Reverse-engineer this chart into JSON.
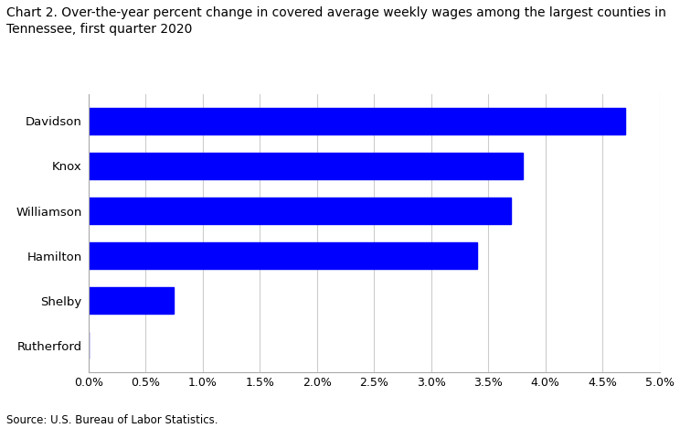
{
  "title_line1": "Chart 2. Over-the-year percent change in covered average weekly wages among the largest counties in",
  "title_line2": "Tennessee, first quarter 2020",
  "categories": [
    "Davidson",
    "Knox",
    "Williamson",
    "Hamilton",
    "Shelby",
    "Rutherford"
  ],
  "values": [
    0.047,
    0.038,
    0.037,
    0.034,
    0.0075,
    0.0
  ],
  "bar_color": "#0000FF",
  "xlim": [
    0,
    0.05
  ],
  "xtick_values": [
    0.0,
    0.005,
    0.01,
    0.015,
    0.02,
    0.025,
    0.03,
    0.035,
    0.04,
    0.045,
    0.05
  ],
  "source": "Source: U.S. Bureau of Labor Statistics.",
  "background_color": "#ffffff",
  "grid_color": "#cccccc",
  "title_fontsize": 10,
  "label_fontsize": 9.5,
  "tick_fontsize": 9,
  "source_fontsize": 8.5,
  "bar_height": 0.6
}
